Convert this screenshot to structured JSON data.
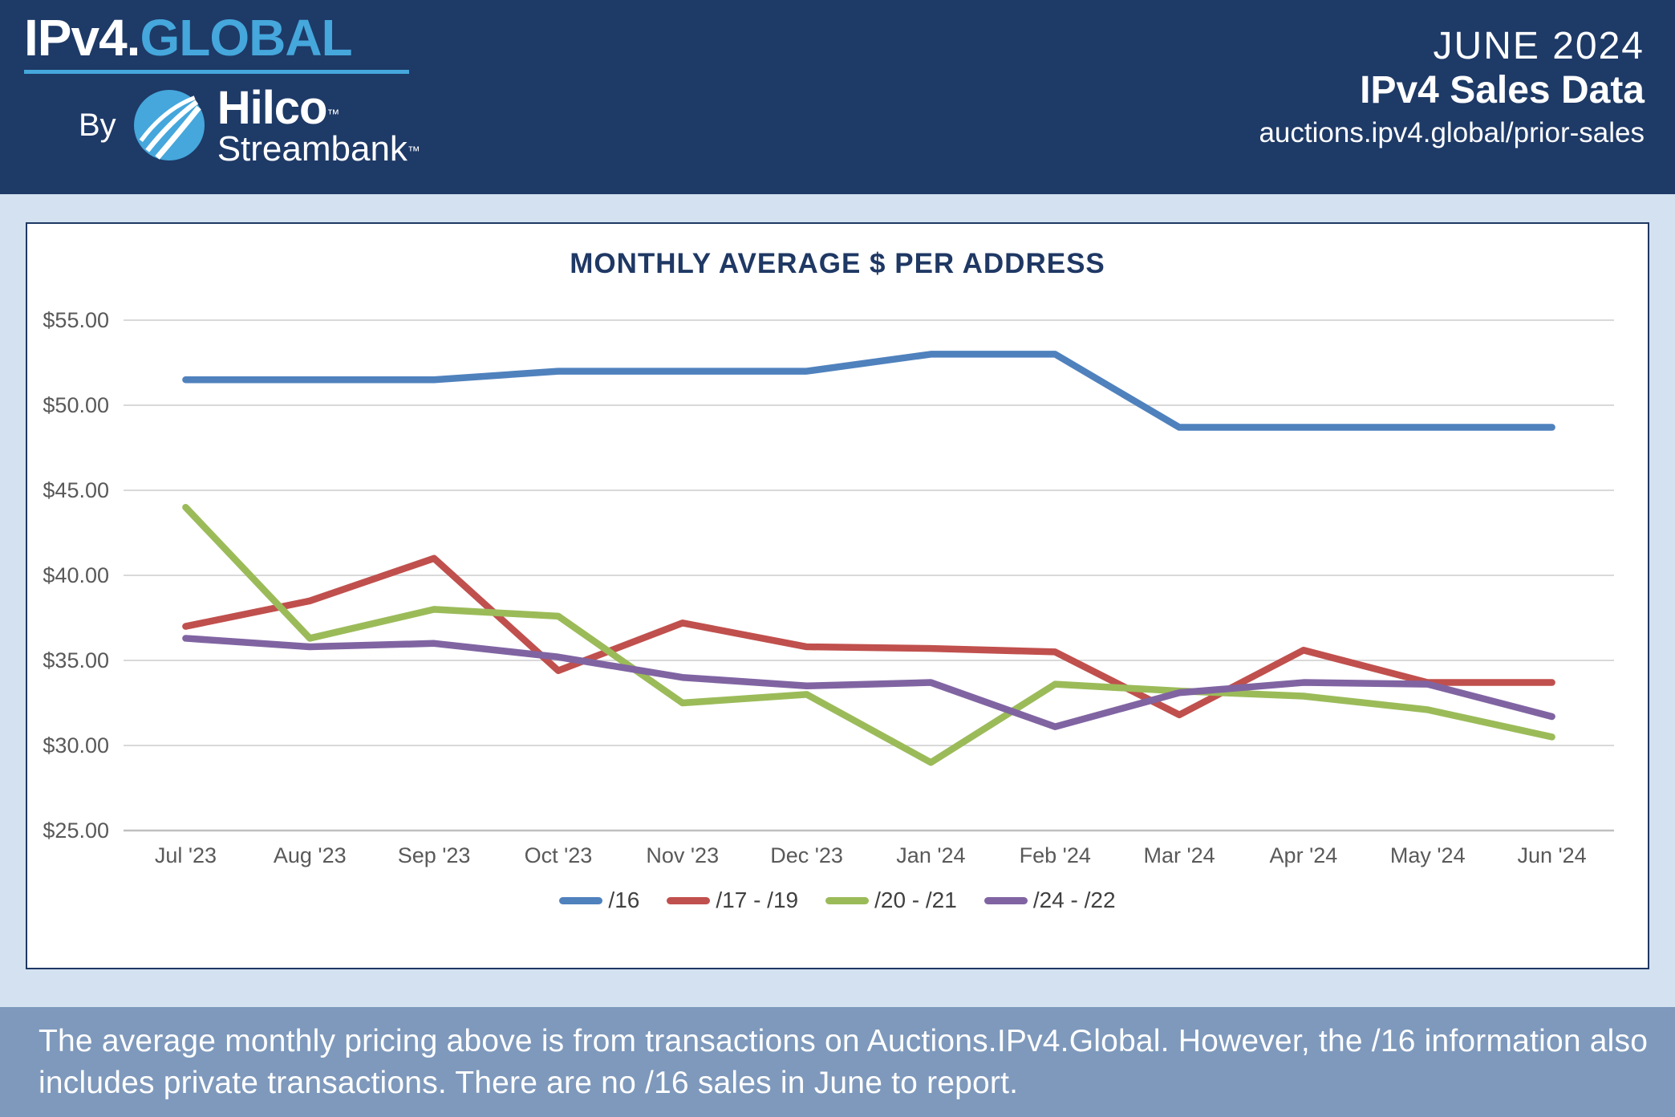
{
  "header": {
    "brand_primary": "IPv4.",
    "brand_secondary": "GLOBAL",
    "by_label": "By",
    "partner_name": "Hilco",
    "partner_name_tm": "™",
    "partner_sub": "Streambank",
    "partner_sub_tm": "™",
    "date_label": "JUNE 2024",
    "report_title": "IPv4 Sales Data",
    "url": "auctions.ipv4.global/prior-sales"
  },
  "chart_data": {
    "type": "line",
    "title": "MONTHLY AVERAGE $ PER ADDRESS",
    "categories": [
      "Jul '23",
      "Aug '23",
      "Sep '23",
      "Oct '23",
      "Nov '23",
      "Dec '23",
      "Jan '24",
      "Feb '24",
      "Mar '24",
      "Apr '24",
      "May '24",
      "Jun '24"
    ],
    "series": [
      {
        "name": "/16",
        "color": "#4F81BD",
        "values": [
          51.5,
          51.5,
          51.5,
          52.0,
          52.0,
          52.0,
          53.0,
          53.0,
          48.7,
          48.7,
          48.7,
          48.7
        ]
      },
      {
        "name": "/17 - /19",
        "color": "#C0504D",
        "values": [
          37.0,
          38.5,
          41.0,
          34.4,
          37.2,
          35.8,
          35.7,
          35.5,
          31.8,
          35.6,
          33.7,
          33.7
        ]
      },
      {
        "name": "/20 - /21",
        "color": "#9BBB59",
        "values": [
          44.0,
          36.3,
          38.0,
          37.6,
          32.5,
          33.0,
          29.0,
          33.6,
          33.2,
          32.9,
          32.1,
          30.5
        ]
      },
      {
        "name": "/24 - /22",
        "color": "#8064A2",
        "values": [
          36.3,
          35.8,
          36.0,
          35.2,
          34.0,
          33.5,
          33.7,
          31.1,
          33.1,
          33.7,
          33.6,
          31.7
        ]
      }
    ],
    "ylim": [
      25,
      55
    ],
    "ytick_step": 5,
    "ytick_labels": [
      "$25.00",
      "$30.00",
      "$35.00",
      "$40.00",
      "$45.00",
      "$50.00",
      "$55.00"
    ],
    "grid": true,
    "legend_position": "bottom"
  },
  "footer": {
    "line1": "The average monthly pricing above is from transactions on Auctions.IPv4.Global. However, the /16 information also",
    "line2": "includes private transactions. There are no /16 sales in June to report."
  },
  "colors": {
    "header_bg": "#1E3A67",
    "body_bg": "#D3E1F0",
    "footer_bg": "#7E99BC",
    "brand_blue": "#45A7DC",
    "title_navy": "#1F3864",
    "gridline": "#D9D9D9",
    "axis_line": "#BFBFBF",
    "tick_text": "#595959",
    "legend_text": "#404040"
  }
}
